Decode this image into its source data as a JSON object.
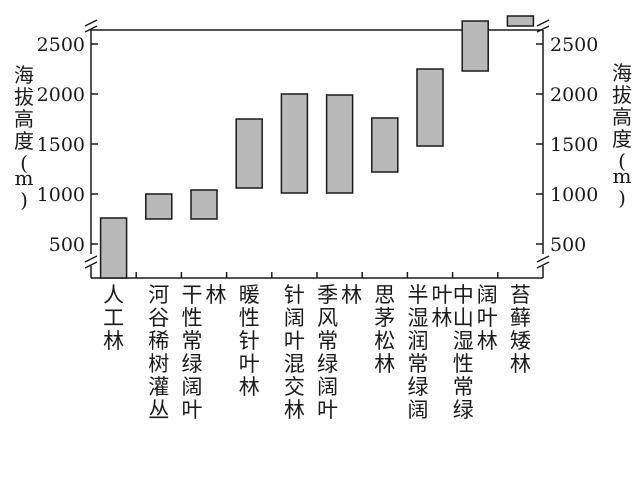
{
  "chart_data": {
    "type": "bar",
    "subtype": "floating-range",
    "ylabel": "海拔高度(m)",
    "ylabel_right": "海拔高度(m)",
    "yticks": [
      500,
      1000,
      1500,
      2000,
      2500
    ],
    "ylim": [
      200,
      2780
    ],
    "axis_breaks": true,
    "bar_color": "#b9b9b9",
    "categories": [
      {
        "label": "人工林",
        "low": 200,
        "high": 760
      },
      {
        "label": "河谷稀树灌丛",
        "low": 750,
        "high": 1000
      },
      {
        "label": "干性常绿阔叶林",
        "low": 750,
        "high": 1040
      },
      {
        "label": "暖性针叶林",
        "low": 1060,
        "high": 1750
      },
      {
        "label": "针阔叶混交林",
        "low": 1010,
        "high": 2000
      },
      {
        "label": "季风常绿阔叶林",
        "low": 1010,
        "high": 1990
      },
      {
        "label": "思茅松林",
        "low": 1220,
        "high": 1760
      },
      {
        "label": "半湿润常绿阔叶林",
        "low": 1480,
        "high": 2250
      },
      {
        "label": "中山湿性常绿阔叶林",
        "low": 2230,
        "high": 2730
      },
      {
        "label": "苔藓矮林",
        "low": 2680,
        "high": 2780
      }
    ]
  }
}
